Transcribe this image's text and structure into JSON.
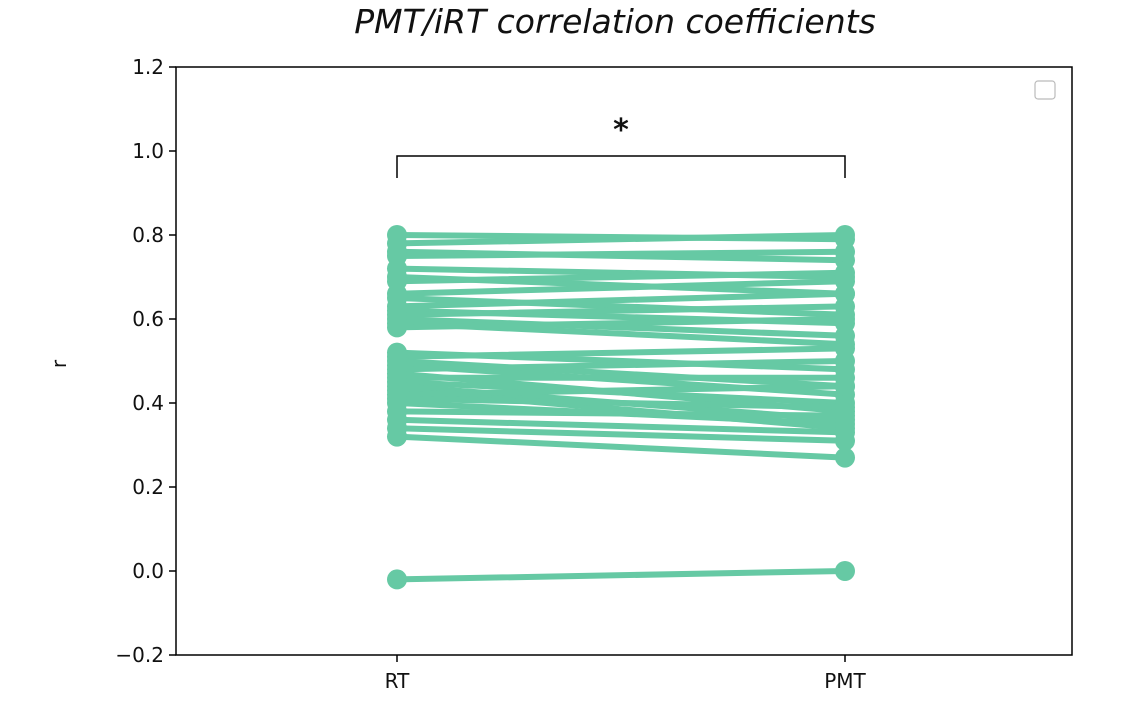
{
  "chart_data": {
    "type": "line",
    "title": "PMT/iRT correlation coefficients",
    "xlabel": "",
    "ylabel": "r",
    "categories": [
      "RT",
      "PMT"
    ],
    "ylim": [
      -0.2,
      1.2
    ],
    "yticks": [
      "-0.2",
      "0.0",
      "0.2",
      "0.4",
      "0.6",
      "0.8",
      "1.0",
      "1.2"
    ],
    "ytick_values": [
      -0.2,
      0.0,
      0.2,
      0.4,
      0.6,
      0.8,
      1.0,
      1.2
    ],
    "significance_marker": "*",
    "legend": "top-right",
    "color": "#66c9a4",
    "grid": false,
    "pairs": [
      [
        0.8,
        0.79
      ],
      [
        0.78,
        0.8
      ],
      [
        0.76,
        0.74
      ],
      [
        0.75,
        0.76
      ],
      [
        0.72,
        0.7
      ],
      [
        0.7,
        0.66
      ],
      [
        0.69,
        0.71
      ],
      [
        0.66,
        0.69
      ],
      [
        0.65,
        0.61
      ],
      [
        0.63,
        0.66
      ],
      [
        0.62,
        0.59
      ],
      [
        0.61,
        0.63
      ],
      [
        0.6,
        0.56
      ],
      [
        0.59,
        0.54
      ],
      [
        0.58,
        0.6
      ],
      [
        0.52,
        0.48
      ],
      [
        0.51,
        0.53
      ],
      [
        0.5,
        0.44
      ],
      [
        0.49,
        0.42
      ],
      [
        0.48,
        0.5
      ],
      [
        0.47,
        0.38
      ],
      [
        0.46,
        0.46
      ],
      [
        0.45,
        0.4
      ],
      [
        0.44,
        0.36
      ],
      [
        0.43,
        0.34
      ],
      [
        0.42,
        0.44
      ],
      [
        0.41,
        0.39
      ],
      [
        0.4,
        0.35
      ],
      [
        0.38,
        0.37
      ],
      [
        0.36,
        0.33
      ],
      [
        0.34,
        0.31
      ],
      [
        0.32,
        0.27
      ],
      [
        -0.02,
        0.0
      ]
    ]
  }
}
